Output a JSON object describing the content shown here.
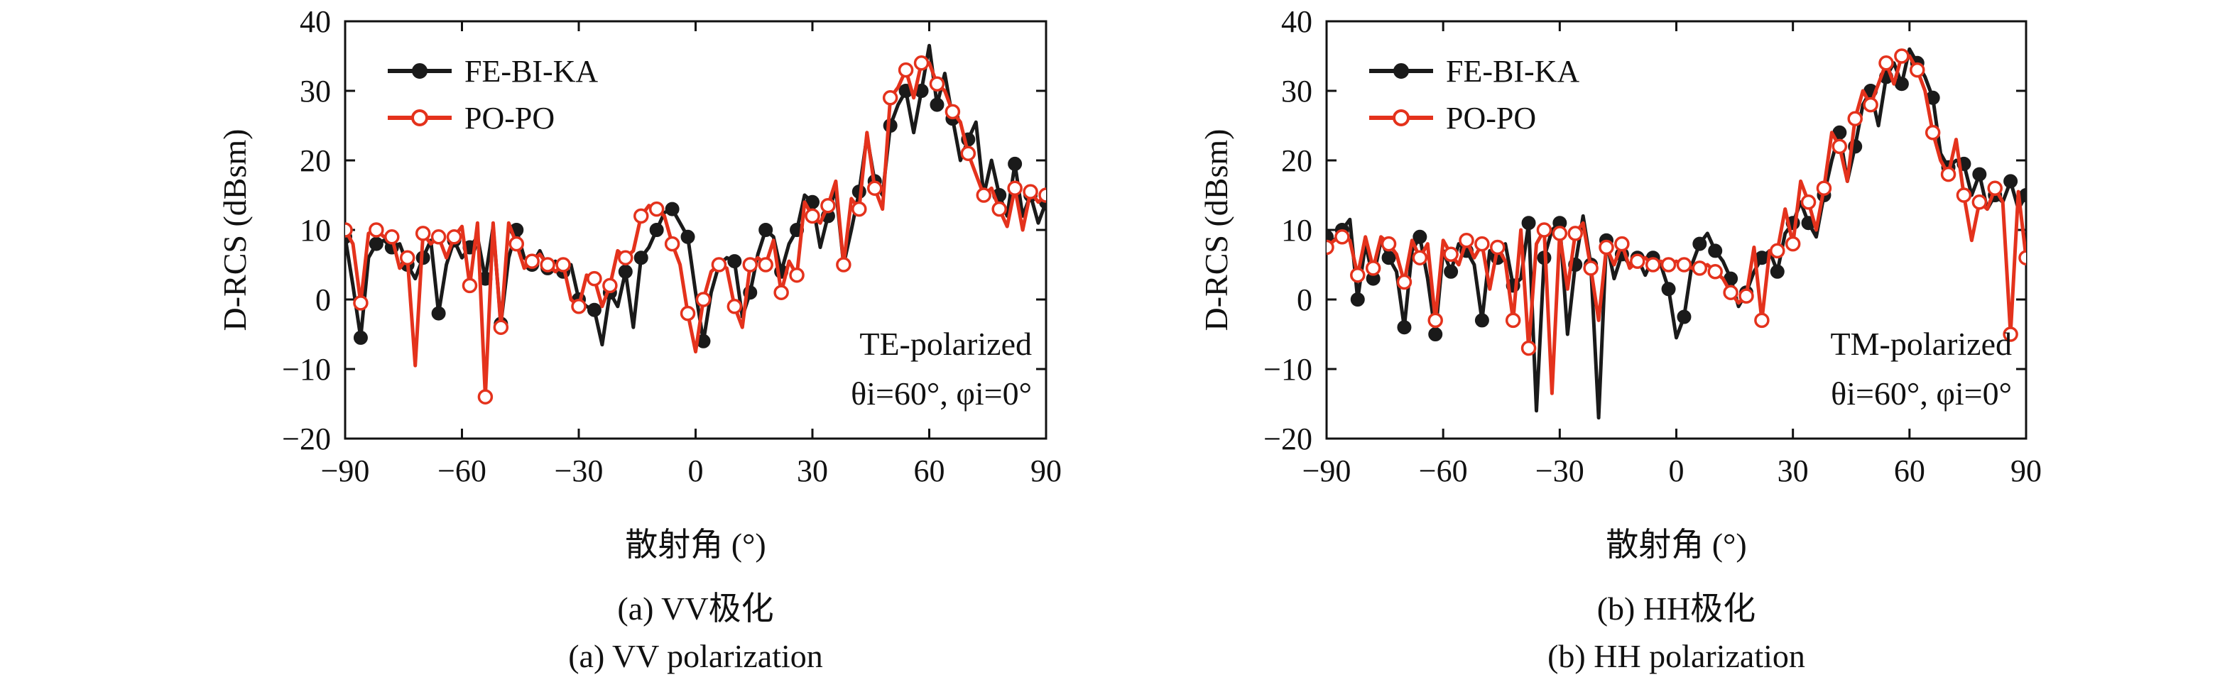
{
  "colors": {
    "black_series": "#1a1a1a",
    "red_series": "#e4321c",
    "axis": "#111111"
  },
  "chart_data": [
    {
      "type": "line",
      "xlabel": "散射角 (°)",
      "ylabel": "D-RCS (dBsm)",
      "xlim": [
        -90,
        90
      ],
      "ylim": [
        -20,
        40
      ],
      "xticks": [
        -90,
        -60,
        -30,
        0,
        30,
        60,
        90
      ],
      "yticks": [
        -20,
        -10,
        0,
        10,
        20,
        30,
        40
      ],
      "legend_position": "top-left",
      "annotation": {
        "line1": "TE-polarized",
        "line2": "θi=60°, φi=0°"
      },
      "caption_cn": "(a) VV极化",
      "caption_en": "(a) VV polarization",
      "series": [
        {
          "name": "FE-BI-KA",
          "color": "#1a1a1a",
          "marker": "filled-circle",
          "x": [
            -90,
            -88,
            -86,
            -84,
            -82,
            -80,
            -78,
            -76,
            -74,
            -72,
            -70,
            -68,
            -66,
            -64,
            -62,
            -60,
            -58,
            -56,
            -54,
            -52,
            -50,
            -48,
            -46,
            -44,
            -42,
            -40,
            -38,
            -36,
            -34,
            -32,
            -30,
            -28,
            -26,
            -24,
            -22,
            -20,
            -18,
            -16,
            -14,
            -12,
            -10,
            -8,
            -6,
            -4,
            -2,
            0,
            2,
            4,
            6,
            8,
            10,
            12,
            14,
            16,
            18,
            20,
            22,
            24,
            26,
            28,
            30,
            32,
            34,
            36,
            38,
            40,
            42,
            44,
            46,
            48,
            50,
            52,
            54,
            56,
            58,
            60,
            62,
            64,
            66,
            68,
            70,
            72,
            74,
            76,
            78,
            80,
            82,
            84,
            86,
            88,
            90
          ],
          "y": [
            9,
            2,
            -5.5,
            6,
            8,
            8.5,
            7.5,
            8,
            5,
            3,
            6,
            8.5,
            -2,
            5,
            8.5,
            6,
            7.5,
            9,
            3,
            10.5,
            -3.5,
            6,
            10,
            6,
            5,
            7,
            4.5,
            5.5,
            4,
            5,
            0,
            -1,
            -1.5,
            -6.5,
            1,
            -1,
            4,
            -4,
            6,
            7.5,
            10,
            12.5,
            13,
            11,
            9,
            1,
            -6,
            1,
            5,
            6,
            5.5,
            -2.5,
            1,
            6.5,
            10,
            9,
            4,
            8,
            10,
            15,
            14,
            7.5,
            12,
            16,
            5,
            10,
            15.5,
            23.5,
            17,
            15,
            25,
            28,
            30,
            24,
            30,
            36.5,
            28,
            32.5,
            26,
            20,
            23,
            25.5,
            15,
            20,
            15,
            12,
            19.5,
            12,
            15,
            11,
            14
          ]
        },
        {
          "name": "PO-PO",
          "color": "#e4321c",
          "marker": "open-circle",
          "x": [
            -90,
            -88,
            -86,
            -84,
            -82,
            -80,
            -78,
            -76,
            -74,
            -72,
            -70,
            -68,
            -66,
            -64,
            -62,
            -60,
            -58,
            -56,
            -54,
            -52,
            -50,
            -48,
            -46,
            -44,
            -42,
            -40,
            -38,
            -36,
            -34,
            -32,
            -30,
            -28,
            -26,
            -24,
            -22,
            -20,
            -18,
            -16,
            -14,
            -12,
            -10,
            -8,
            -6,
            -4,
            -2,
            0,
            2,
            4,
            6,
            8,
            10,
            12,
            14,
            16,
            18,
            20,
            22,
            24,
            26,
            28,
            30,
            32,
            34,
            36,
            38,
            40,
            42,
            44,
            46,
            48,
            50,
            52,
            54,
            56,
            58,
            60,
            62,
            64,
            66,
            68,
            70,
            72,
            74,
            76,
            78,
            80,
            82,
            84,
            86,
            88,
            90
          ],
          "y": [
            10,
            8,
            -0.5,
            9.5,
            10,
            9,
            9,
            4.5,
            6,
            -9.5,
            9.5,
            8,
            9,
            6,
            9,
            10.5,
            2,
            11,
            -14,
            11,
            -4,
            11,
            8,
            4.5,
            5.5,
            6.5,
            5,
            4,
            5,
            0,
            -1,
            3.5,
            3,
            -1,
            2,
            7,
            6,
            7,
            12,
            13.5,
            13,
            12,
            8,
            5,
            -2,
            -7.5,
            0,
            4,
            5,
            4.5,
            -1,
            -4,
            5,
            6,
            5,
            8.5,
            1,
            5.5,
            3.5,
            14,
            12,
            11,
            13.5,
            17,
            5,
            14.5,
            13,
            24,
            16,
            13,
            29,
            30.5,
            33,
            29,
            34,
            34,
            31,
            30,
            27,
            25.5,
            21,
            18,
            15,
            16,
            13,
            10.5,
            16,
            10,
            15.5,
            14,
            15
          ]
        }
      ]
    },
    {
      "type": "line",
      "xlabel": "散射角 (°)",
      "ylabel": "D-RCS (dBsm)",
      "xlim": [
        -90,
        90
      ],
      "ylim": [
        -20,
        40
      ],
      "xticks": [
        -90,
        -60,
        -30,
        0,
        30,
        60,
        90
      ],
      "yticks": [
        -20,
        -10,
        0,
        10,
        20,
        30,
        40
      ],
      "legend_position": "top-left",
      "annotation": {
        "line1": "TM-polarized",
        "line2": "θi=60°, φi=0°"
      },
      "caption_cn": "(b) HH极化",
      "caption_en": "(b) HH polarization",
      "series": [
        {
          "name": "FE-BI-KA",
          "color": "#1a1a1a",
          "marker": "filled-circle",
          "x": [
            -90,
            -88,
            -86,
            -84,
            -82,
            -80,
            -78,
            -76,
            -74,
            -72,
            -70,
            -68,
            -66,
            -64,
            -62,
            -60,
            -58,
            -56,
            -54,
            -52,
            -50,
            -48,
            -46,
            -44,
            -42,
            -40,
            -38,
            -36,
            -34,
            -32,
            -30,
            -28,
            -26,
            -24,
            -22,
            -20,
            -18,
            -16,
            -14,
            -12,
            -10,
            -8,
            -6,
            -4,
            -2,
            0,
            2,
            4,
            6,
            8,
            10,
            12,
            14,
            16,
            18,
            20,
            22,
            24,
            26,
            28,
            30,
            32,
            34,
            36,
            38,
            40,
            42,
            44,
            46,
            48,
            50,
            52,
            54,
            56,
            58,
            60,
            62,
            64,
            66,
            68,
            70,
            72,
            74,
            76,
            78,
            80,
            82,
            84,
            86,
            88,
            90
          ],
          "y": [
            9,
            8.5,
            10,
            11.5,
            0,
            8,
            3,
            8.5,
            6,
            4,
            -4,
            7,
            9,
            3,
            -5,
            7,
            4,
            8,
            7,
            5,
            -3,
            7,
            6,
            8,
            2,
            3,
            11,
            -16,
            6,
            10,
            11,
            -5,
            5,
            12,
            5,
            -17,
            8.5,
            3,
            6.5,
            5,
            6,
            3.5,
            6,
            5,
            1.5,
            -5.5,
            -2.5,
            5,
            8,
            9.5,
            7,
            5.5,
            3,
            -1,
            1,
            4,
            6,
            7,
            4,
            9.5,
            11,
            14,
            11,
            9,
            15,
            20,
            24,
            17,
            22,
            28,
            30,
            25,
            32,
            34,
            31,
            36,
            34,
            32,
            29,
            21,
            19,
            20,
            19.5,
            15,
            18,
            13,
            15,
            14,
            17,
            13,
            15
          ]
        },
        {
          "name": "PO-PO",
          "color": "#e4321c",
          "marker": "open-circle",
          "x": [
            -90,
            -88,
            -86,
            -84,
            -82,
            -80,
            -78,
            -76,
            -74,
            -72,
            -70,
            -68,
            -66,
            -64,
            -62,
            -60,
            -58,
            -56,
            -54,
            -52,
            -50,
            -48,
            -46,
            -44,
            -42,
            -40,
            -38,
            -36,
            -34,
            -32,
            -30,
            -28,
            -26,
            -24,
            -22,
            -20,
            -18,
            -16,
            -14,
            -12,
            -10,
            -8,
            -6,
            -4,
            -2,
            0,
            2,
            4,
            6,
            8,
            10,
            12,
            14,
            16,
            18,
            20,
            22,
            24,
            26,
            28,
            30,
            32,
            34,
            36,
            38,
            40,
            42,
            44,
            46,
            48,
            50,
            52,
            54,
            56,
            58,
            60,
            62,
            64,
            66,
            68,
            70,
            72,
            74,
            76,
            78,
            80,
            82,
            84,
            86,
            88,
            90
          ],
          "y": [
            7.5,
            8.5,
            9,
            8.5,
            3.5,
            9,
            4.5,
            9,
            8,
            6.5,
            2.5,
            8.5,
            6,
            8,
            -3,
            8.5,
            6.5,
            5,
            8.5,
            6,
            8,
            1.5,
            7.5,
            5.5,
            -3,
            10,
            -7,
            8,
            10,
            -13.5,
            9.5,
            1.5,
            9.5,
            11,
            4.5,
            -3,
            7.5,
            5,
            8,
            4.5,
            5.5,
            6,
            5,
            5.5,
            5,
            5.5,
            5,
            4.5,
            4.5,
            5,
            4,
            3,
            1,
            -0.5,
            0.5,
            7.5,
            -3,
            7,
            7,
            13,
            8,
            17,
            14,
            10,
            16,
            24,
            22,
            17,
            26,
            30,
            28,
            31,
            34,
            31,
            35,
            35,
            33,
            30,
            24,
            20,
            18,
            23,
            15,
            8.5,
            14,
            13,
            16,
            14,
            -5,
            15.5,
            6
          ]
        }
      ]
    }
  ]
}
